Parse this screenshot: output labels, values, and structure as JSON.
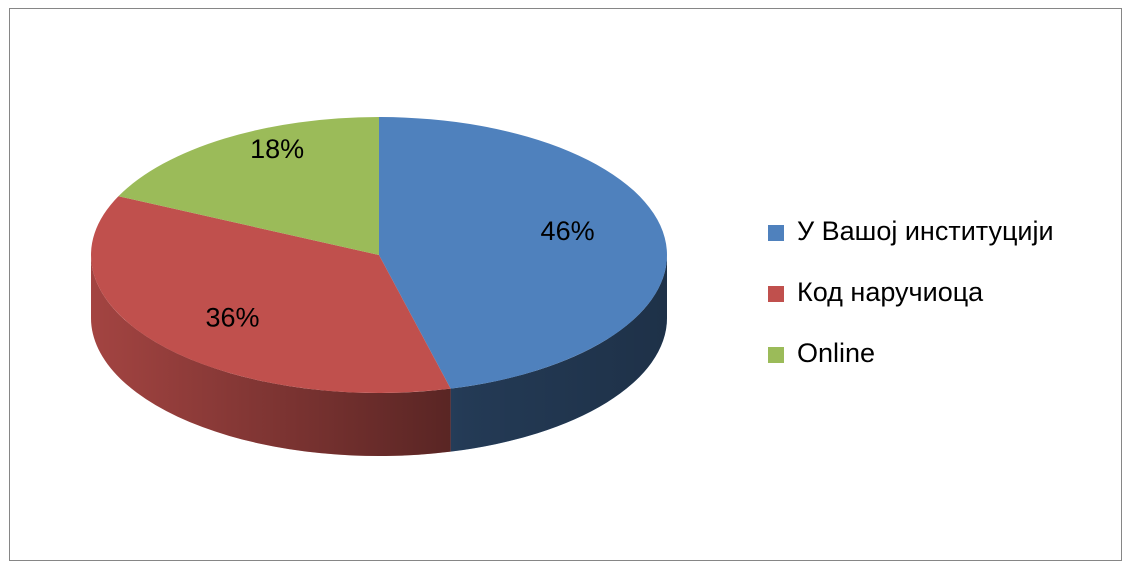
{
  "chart_data": {
    "type": "pie",
    "categories": [
      "У Вашој институцији",
      "Код наручиоца",
      "Online"
    ],
    "values": [
      46,
      36,
      18
    ],
    "value_labels": [
      "46%",
      "36%",
      "18%"
    ],
    "colors": [
      "#4f81bd",
      "#c0504d",
      "#9bbb59"
    ],
    "legend": "right"
  }
}
